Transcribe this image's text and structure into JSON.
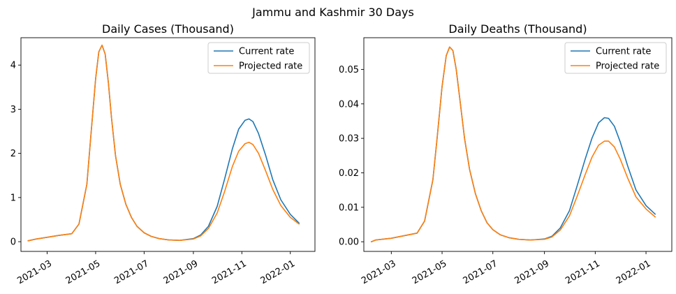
{
  "figure": {
    "suptitle": "Jammu and Kashmir 30 Days"
  },
  "chart_data": [
    {
      "type": "line",
      "title": "Daily Cases (Thousand)",
      "xlabel": "",
      "ylabel": "",
      "x_axis": "date",
      "xlim": [
        "2021-01-27",
        "2022-02-01"
      ],
      "ylim": [
        -0.22,
        4.62
      ],
      "xticks": [
        "2021-03",
        "2021-05",
        "2021-07",
        "2021-09",
        "2021-11",
        "2022-01"
      ],
      "yticks": [
        "0",
        "1",
        "2",
        "3",
        "4"
      ],
      "grid": false,
      "legend": {
        "location": "top-right",
        "entries": [
          "Current rate",
          "Projected rate"
        ]
      },
      "series": [
        {
          "name": "Current rate",
          "color": "#1f77b4",
          "x": [
            "2021-02-05",
            "2021-02-15",
            "2021-03-01",
            "2021-03-15",
            "2021-04-01",
            "2021-04-10",
            "2021-04-20",
            "2021-04-25",
            "2021-05-01",
            "2021-05-05",
            "2021-05-09",
            "2021-05-13",
            "2021-05-17",
            "2021-05-21",
            "2021-05-26",
            "2021-06-01",
            "2021-06-08",
            "2021-06-15",
            "2021-06-22",
            "2021-07-01",
            "2021-07-10",
            "2021-07-20",
            "2021-08-01",
            "2021-08-15",
            "2021-09-01",
            "2021-09-10",
            "2021-09-20",
            "2021-10-01",
            "2021-10-10",
            "2021-10-20",
            "2021-10-28",
            "2021-11-05",
            "2021-11-10",
            "2021-11-15",
            "2021-11-22",
            "2021-12-01",
            "2021-12-10",
            "2021-12-20",
            "2022-01-01",
            "2022-01-12"
          ],
          "y": [
            0.02,
            0.06,
            0.1,
            0.14,
            0.18,
            0.4,
            1.3,
            2.4,
            3.7,
            4.3,
            4.45,
            4.25,
            3.6,
            2.8,
            1.95,
            1.3,
            0.85,
            0.55,
            0.35,
            0.2,
            0.12,
            0.07,
            0.04,
            0.03,
            0.07,
            0.15,
            0.35,
            0.8,
            1.4,
            2.1,
            2.55,
            2.75,
            2.78,
            2.72,
            2.45,
            1.95,
            1.4,
            0.95,
            0.62,
            0.42
          ]
        },
        {
          "name": "Projected rate",
          "color": "#ff7f0e",
          "x": [
            "2021-02-05",
            "2021-02-15",
            "2021-03-01",
            "2021-03-15",
            "2021-04-01",
            "2021-04-10",
            "2021-04-20",
            "2021-04-25",
            "2021-05-01",
            "2021-05-05",
            "2021-05-09",
            "2021-05-13",
            "2021-05-17",
            "2021-05-21",
            "2021-05-26",
            "2021-06-01",
            "2021-06-08",
            "2021-06-15",
            "2021-06-22",
            "2021-07-01",
            "2021-07-10",
            "2021-07-20",
            "2021-08-01",
            "2021-08-15",
            "2021-09-01",
            "2021-09-10",
            "2021-09-20",
            "2021-10-01",
            "2021-10-10",
            "2021-10-20",
            "2021-10-28",
            "2021-11-05",
            "2021-11-10",
            "2021-11-15",
            "2021-11-22",
            "2021-12-01",
            "2021-12-10",
            "2021-12-20",
            "2022-01-01",
            "2022-01-12"
          ],
          "y": [
            0.02,
            0.06,
            0.1,
            0.14,
            0.18,
            0.4,
            1.3,
            2.4,
            3.7,
            4.3,
            4.45,
            4.25,
            3.6,
            2.8,
            1.95,
            1.3,
            0.85,
            0.55,
            0.35,
            0.2,
            0.12,
            0.07,
            0.04,
            0.03,
            0.06,
            0.13,
            0.3,
            0.65,
            1.12,
            1.7,
            2.05,
            2.22,
            2.25,
            2.2,
            2.0,
            1.6,
            1.18,
            0.82,
            0.55,
            0.4
          ]
        }
      ]
    },
    {
      "type": "line",
      "title": "Daily Deaths (Thousand)",
      "xlabel": "",
      "ylabel": "",
      "x_axis": "date",
      "xlim": [
        "2021-01-27",
        "2022-02-01"
      ],
      "ylim": [
        -0.0028,
        0.0592
      ],
      "xticks": [
        "2021-03",
        "2021-05",
        "2021-07",
        "2021-09",
        "2021-11",
        "2022-01"
      ],
      "yticks": [
        "0.00",
        "0.01",
        "0.02",
        "0.03",
        "0.04",
        "0.05"
      ],
      "grid": false,
      "legend": {
        "location": "top-right",
        "entries": [
          "Current rate",
          "Projected rate"
        ]
      },
      "series": [
        {
          "name": "Current rate",
          "color": "#1f77b4",
          "x": [
            "2021-02-05",
            "2021-02-10",
            "2021-03-01",
            "2021-04-01",
            "2021-04-10",
            "2021-04-20",
            "2021-04-25",
            "2021-05-01",
            "2021-05-06",
            "2021-05-10",
            "2021-05-14",
            "2021-05-18",
            "2021-05-23",
            "2021-05-28",
            "2021-06-03",
            "2021-06-10",
            "2021-06-17",
            "2021-06-24",
            "2021-07-01",
            "2021-07-10",
            "2021-07-20",
            "2021-08-01",
            "2021-08-15",
            "2021-09-01",
            "2021-09-10",
            "2021-09-20",
            "2021-10-01",
            "2021-10-10",
            "2021-10-20",
            "2021-10-28",
            "2021-11-05",
            "2021-11-12",
            "2021-11-17",
            "2021-11-24",
            "2021-12-01",
            "2021-12-10",
            "2021-12-20",
            "2022-01-01",
            "2022-01-12"
          ],
          "y": [
            0.0,
            0.0005,
            0.001,
            0.0025,
            0.006,
            0.018,
            0.03,
            0.045,
            0.054,
            0.0565,
            0.0555,
            0.05,
            0.04,
            0.03,
            0.021,
            0.014,
            0.009,
            0.0055,
            0.0035,
            0.002,
            0.0012,
            0.0007,
            0.0005,
            0.0008,
            0.0016,
            0.004,
            0.009,
            0.016,
            0.024,
            0.03,
            0.0345,
            0.036,
            0.0358,
            0.0335,
            0.029,
            0.022,
            0.015,
            0.0105,
            0.008
          ]
        },
        {
          "name": "Projected rate",
          "color": "#ff7f0e",
          "x": [
            "2021-02-05",
            "2021-02-10",
            "2021-03-01",
            "2021-04-01",
            "2021-04-10",
            "2021-04-20",
            "2021-04-25",
            "2021-05-01",
            "2021-05-06",
            "2021-05-10",
            "2021-05-14",
            "2021-05-18",
            "2021-05-23",
            "2021-05-28",
            "2021-06-03",
            "2021-06-10",
            "2021-06-17",
            "2021-06-24",
            "2021-07-01",
            "2021-07-10",
            "2021-07-20",
            "2021-08-01",
            "2021-08-15",
            "2021-09-01",
            "2021-09-10",
            "2021-09-20",
            "2021-10-01",
            "2021-10-10",
            "2021-10-20",
            "2021-10-28",
            "2021-11-05",
            "2021-11-12",
            "2021-11-17",
            "2021-11-24",
            "2021-12-01",
            "2021-12-10",
            "2021-12-20",
            "2022-01-01",
            "2022-01-12"
          ],
          "y": [
            0.0,
            0.0005,
            0.001,
            0.0025,
            0.006,
            0.018,
            0.03,
            0.045,
            0.054,
            0.0565,
            0.0555,
            0.05,
            0.04,
            0.03,
            0.021,
            0.014,
            0.009,
            0.0055,
            0.0035,
            0.002,
            0.0012,
            0.0007,
            0.0005,
            0.0007,
            0.0014,
            0.0034,
            0.0075,
            0.013,
            0.0195,
            0.0245,
            0.028,
            0.0292,
            0.0292,
            0.0275,
            0.024,
            0.0185,
            0.013,
            0.0095,
            0.0072
          ]
        }
      ]
    }
  ]
}
